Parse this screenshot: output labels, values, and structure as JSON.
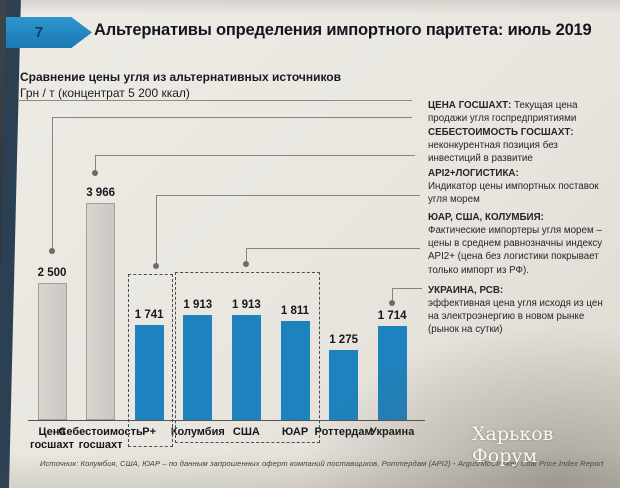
{
  "slide": {
    "page_number": "7",
    "title": "Альтернативы определения импортного паритета: июль 2019",
    "subtitle_bold": "Сравнение цены угля из альтернативных источников",
    "subtitle_units": "Грн / т (концентрат 5 200 ккал)",
    "source": "Источник: Колумбия, США, ЮАР – по данным запрошенных оферт компаний поставщиков, Роттердам (API2) - Argus/McCloskey Coal Price Index Report",
    "watermark": "Харьков Форум"
  },
  "chart_data": {
    "type": "bar",
    "title": "Сравнение цены угля из альтернативных источников",
    "ylabel": "Грн / т (концентрат 5 200 ккал)",
    "categories": [
      "Цена госшахт",
      "Себестоимость госшахт",
      "Р+",
      "Колумбия",
      "США",
      "ЮАР",
      "Роттердам",
      "Украина"
    ],
    "values": [
      2500,
      3966,
      1741,
      1913,
      1913,
      1811,
      1275,
      1714
    ],
    "value_labels": [
      "2 500",
      "3 966",
      "1 741",
      "1 913",
      "1 913",
      "1 811",
      "1 275",
      "1 714"
    ],
    "bar_colors": [
      "gray",
      "gray",
      "blue",
      "blue",
      "blue",
      "blue",
      "blue",
      "blue"
    ],
    "colors": {
      "gray_bar": "#cbc8c2",
      "gray_bar_border": "#a3a09a",
      "blue_bar": "#1e82be"
    },
    "ylim": [
      0,
      4200
    ],
    "grid": false,
    "legend": "none",
    "dashed_groups": [
      {
        "bars": [
          "Р+"
        ]
      },
      {
        "bars": [
          "Колумбия",
          "США",
          "ЮАР"
        ]
      }
    ]
  },
  "annotations": [
    {
      "title": "ЦЕНА ГОСШАХТ:",
      "text": "Текущая цена продажи угля госпредприятиями"
    },
    {
      "title": "СЕБЕСТОИМОСТЬ ГОСШАХТ:",
      "text": "неконкурентная позиция без инвестиций в развитие"
    },
    {
      "title": "API2+ЛОГИСТИКА:",
      "text": "Индикатор цены импортных поставок угля морем"
    },
    {
      "title": "ЮАР, США, КОЛУМБИЯ:",
      "text": "Фактические импортеры угля морем – цены в среднем равнозначны индексу API2+ (цена без логистики покрывает только импорт из РФ)."
    },
    {
      "title": "УКРАИНА, РСВ:",
      "text": "эффективная цена угля исходя из цен на электроэнергию в новом рынке (рынок на сутки)"
    }
  ],
  "accent_colors": {
    "header_arrow": "#1f86c2",
    "navy_strip": "#2c4054"
  }
}
